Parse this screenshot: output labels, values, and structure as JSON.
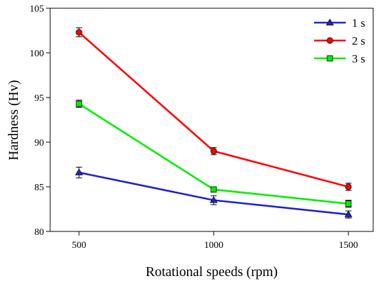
{
  "chart_data": {
    "type": "line",
    "x": [
      500,
      1000,
      1500
    ],
    "xticks": [
      500,
      1000,
      1500
    ],
    "yticks": [
      80,
      85,
      90,
      95,
      100,
      105
    ],
    "xlim": [
      393,
      1592
    ],
    "ylim": [
      80,
      105
    ],
    "xlabel": "Rotational speeds (rpm)",
    "ylabel": "Hardness (Hv)",
    "grid": false,
    "legend": "top-right",
    "error_bars": true,
    "series": [
      {
        "name": "1 s",
        "values": [
          86.6,
          83.5,
          81.9
        ],
        "errors": [
          0.6,
          0.5,
          0.4
        ],
        "color": "#2020d0",
        "marker": "triangle"
      },
      {
        "name": "2 s",
        "values": [
          102.3,
          89.0,
          85.0
        ],
        "errors": [
          0.5,
          0.4,
          0.4
        ],
        "color": "#ff0000",
        "marker": "circle"
      },
      {
        "name": "3 s",
        "values": [
          94.3,
          84.7,
          83.1
        ],
        "errors": [
          0.4,
          0.3,
          0.4
        ],
        "color": "#00ee00",
        "marker": "square"
      }
    ]
  }
}
